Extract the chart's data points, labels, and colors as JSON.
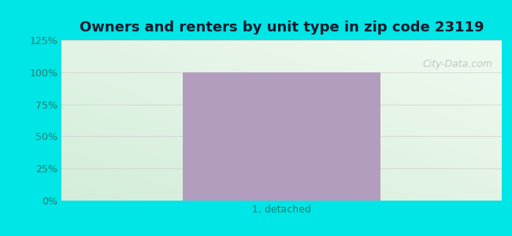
{
  "title": "Owners and renters by unit type in zip code 23119",
  "categories": [
    "1, detached"
  ],
  "values": [
    100
  ],
  "bar_color": "#b39dbe",
  "bar_width": 0.45,
  "ylim": [
    0,
    125
  ],
  "yticks": [
    0,
    25,
    50,
    75,
    100,
    125
  ],
  "ytick_labels": [
    "0%",
    "25%",
    "50%",
    "75%",
    "100%",
    "125%"
  ],
  "outer_bg": "#00e5e5",
  "grad_color_green": "#d4edda",
  "grad_color_white": "#f0faf0",
  "grid_color": "#cccccc",
  "title_fontsize": 13,
  "tick_fontsize": 9,
  "xlabel_fontsize": 9,
  "watermark_text": "City-Data.com",
  "watermark_color": "#bbbbbb",
  "tick_color": "#2a7a6a",
  "title_color": "#1a1a2e"
}
